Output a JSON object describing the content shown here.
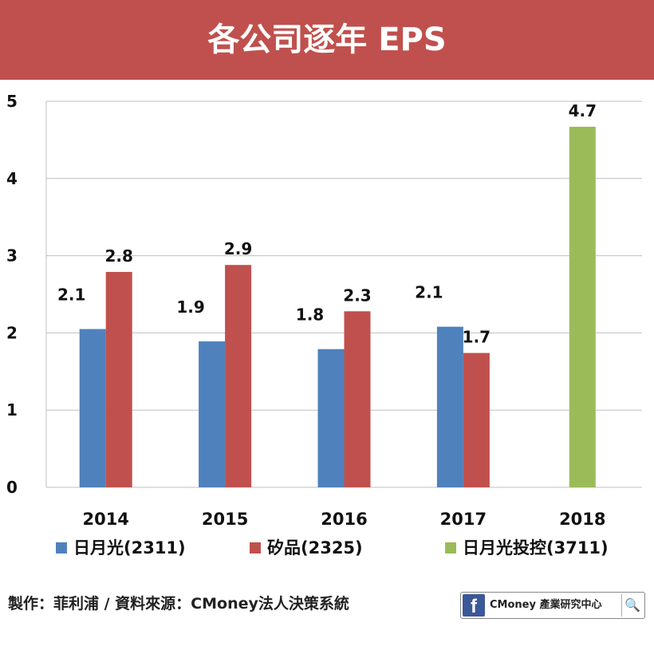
{
  "header": {
    "title": "各公司逐年 EPS"
  },
  "chart_data": {
    "type": "bar",
    "title": "各公司逐年 EPS",
    "categories": [
      "2014",
      "2015",
      "2016",
      "2017",
      "2018"
    ],
    "series": [
      {
        "name": "日月光(2311)",
        "color": "#4f81bd",
        "values": [
          2.05,
          1.89,
          1.79,
          2.08,
          null
        ],
        "labels": [
          "2.1",
          "1.9",
          "1.8",
          "2.1",
          null
        ]
      },
      {
        "name": "矽品(2325)",
        "color": "#c0504d",
        "values": [
          2.79,
          2.88,
          2.28,
          1.74,
          null
        ],
        "labels": [
          "2.8",
          "2.9",
          "2.3",
          "1.7",
          null
        ]
      },
      {
        "name": "日月光投控(3711)",
        "color": "#9bbb59",
        "values": [
          null,
          null,
          null,
          null,
          4.67
        ],
        "labels": [
          null,
          null,
          null,
          null,
          "4.7"
        ]
      }
    ],
    "yticks": [
      "0",
      "1",
      "2",
      "3",
      "4",
      "5"
    ],
    "ylim": [
      0,
      5
    ],
    "grid": true,
    "legend": "bottom"
  },
  "footer": {
    "credit": "製作：菲利浦 / 資料來源：CMoney法人決策系統",
    "badge_text": "CMoney 產業研究中心",
    "badge_icon": "f",
    "search_icon": "🔍"
  }
}
